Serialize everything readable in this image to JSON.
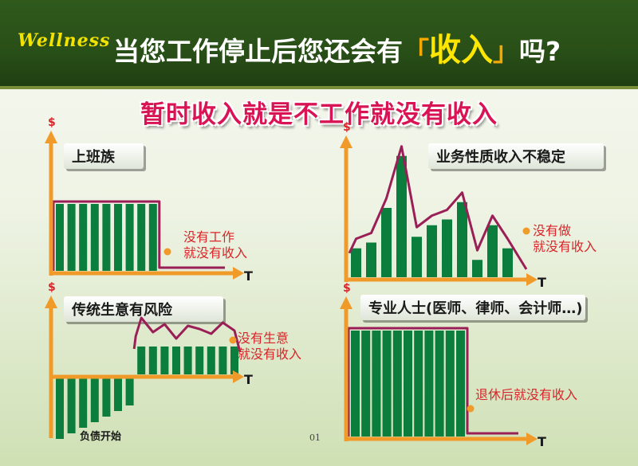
{
  "header": {
    "brand": "Wellness",
    "headline_prefix": "当您工作停止后您还会有",
    "headline_open": "「",
    "headline_emphasis": "收入",
    "headline_close": "」",
    "headline_suffix": "吗?"
  },
  "subtitle": "暂时收入就是不工作就没有收入",
  "page_number": "01",
  "colors": {
    "bar": "#0b7d3c",
    "outline": "#9a1f57",
    "axis": "#f09a2a",
    "note": "#d8262b",
    "header_bg": "#2f5a1c"
  },
  "chart_data": [
    {
      "type": "bar",
      "title": "上班族",
      "ylabel": "$",
      "xlabel": "T",
      "values": [
        6,
        6,
        6,
        6,
        6,
        6,
        6,
        6,
        6,
        0,
        0,
        0,
        0,
        0,
        0
      ],
      "annotation": [
        "没有工作",
        "就没有收入"
      ]
    },
    {
      "type": "bar",
      "title": "业务性质收入不稳定",
      "ylabel": "$",
      "xlabel": "T",
      "values": [
        2.5,
        3,
        6,
        10.5,
        3.5,
        4.5,
        5,
        6.5,
        1.5,
        4.5,
        2.5
      ],
      "annotation": [
        "没有做",
        "就没有收入"
      ]
    },
    {
      "type": "bar",
      "title": "传统生意有风险",
      "ylabel": "$",
      "xlabel": "T",
      "values": [
        -5.5,
        -5,
        -4.5,
        -4,
        -3.5,
        -3,
        -2.5,
        2.5,
        2.5,
        2.5,
        2.5,
        2.5,
        2.5,
        2.5,
        2.5,
        2.5
      ],
      "annotation": [
        "没有生意",
        "就没有收入"
      ],
      "annotation_low": "负债开始"
    },
    {
      "type": "bar",
      "title": "专业人士(医师、律师、会计师…)",
      "ylabel": "$",
      "xlabel": "T",
      "values": [
        10,
        10,
        10,
        10,
        10,
        10,
        10,
        10,
        10,
        10,
        10,
        0,
        0,
        0,
        0
      ],
      "annotation": [
        "退休后就没有收入"
      ]
    }
  ]
}
